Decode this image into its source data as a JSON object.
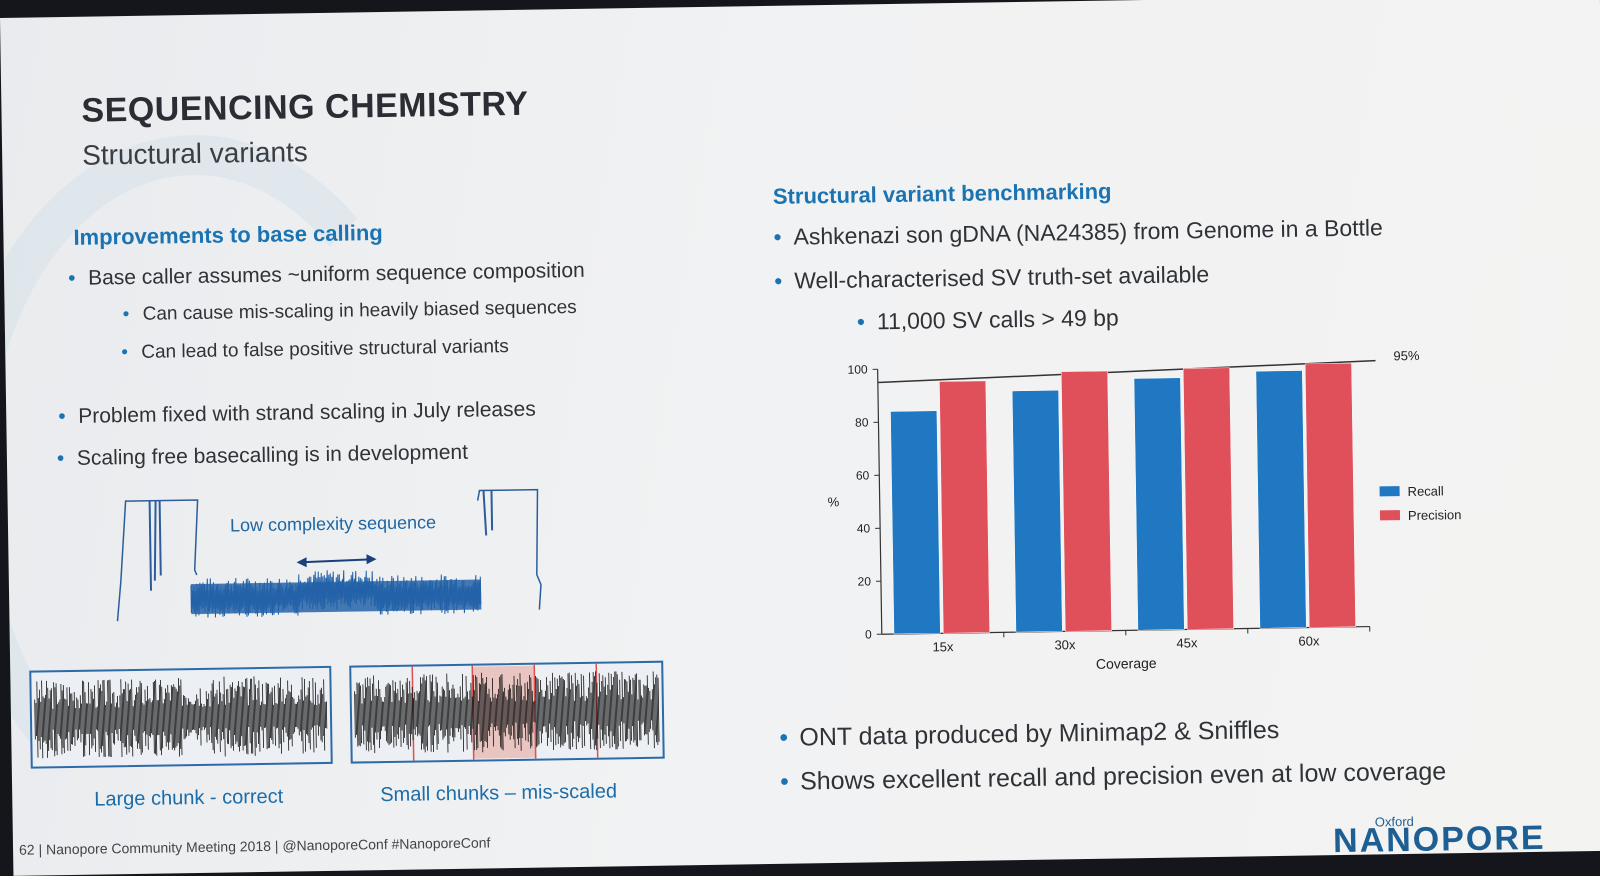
{
  "title": "SEQUENCING CHEMISTRY",
  "subtitle": "Structural variants",
  "left": {
    "heading": "Improvements to base calling",
    "bullets": [
      "Base caller assumes ~uniform sequence composition",
      "Can cause mis-scaling in heavily biased sequences",
      "Can lead to false positive structural variants",
      "Problem fixed with strand scaling in July releases",
      "Scaling free basecalling is in development"
    ],
    "figure_label": "Low complexity sequence",
    "caption_left": "Large chunk - correct",
    "caption_right": "Small chunks – mis-scaled"
  },
  "right": {
    "heading": "Structural variant benchmarking",
    "bullets": [
      "Ashkenazi son gDNA (NA24385) from Genome in a Bottle",
      "Well-characterised SV truth-set available",
      "11,000 SV calls > 49 bp"
    ],
    "bottom_bullets": [
      "ONT data produced by Minimap2 & Sniffles",
      "Shows excellent recall and precision even at low coverage"
    ]
  },
  "chart_data": {
    "type": "bar",
    "categories": [
      "15x",
      "30x",
      "45x",
      "60x"
    ],
    "series": [
      {
        "name": "Recall",
        "values": [
          84,
          91,
          95,
          97
        ],
        "color": "#1f78c1"
      },
      {
        "name": "Precision",
        "values": [
          95,
          98,
          98.5,
          99.5
        ],
        "color": "#e0505a"
      }
    ],
    "xlabel": "Coverage",
    "ylabel": "%",
    "ylim": [
      0,
      100
    ],
    "yticks": [
      0,
      20,
      40,
      60,
      80,
      100
    ],
    "reference_line": {
      "value": 95,
      "label": "95%"
    },
    "legend": "right"
  },
  "footer": {
    "page": "62",
    "event": "Nanopore Community Meeting 2018",
    "handle": "@NanoporeConf #NanoporeConf"
  },
  "logo": {
    "small": "Oxford",
    "big": "NANOPORE"
  }
}
